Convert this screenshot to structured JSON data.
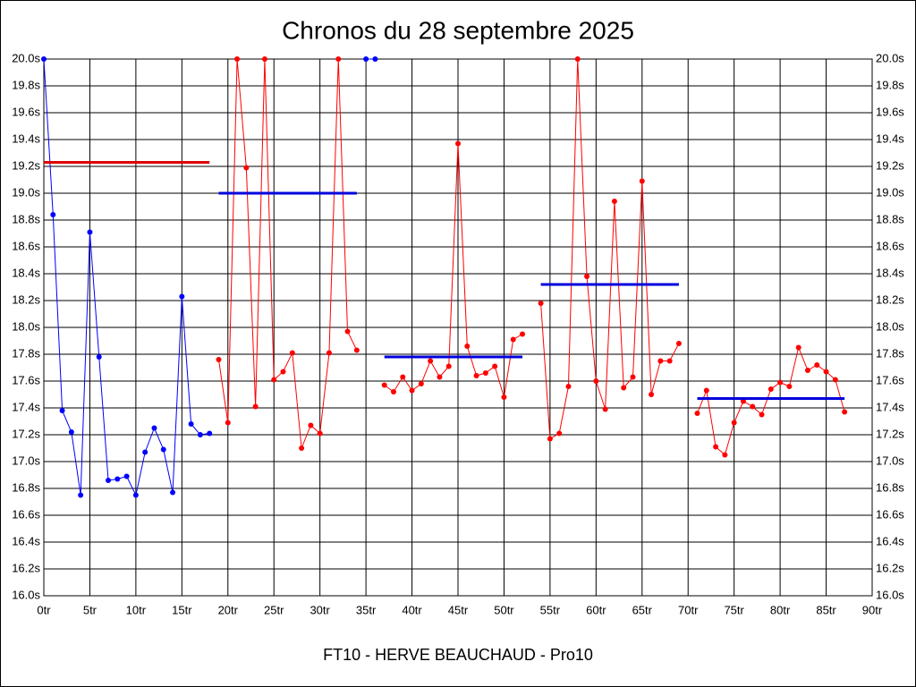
{
  "chart_data": {
    "type": "line",
    "title": "Chronos du 28 septembre 2025",
    "xlabel": "FT10 - HERVE BEAUCHAUD - Pro10",
    "xlim": [
      0,
      90
    ],
    "ylim": [
      16,
      20
    ],
    "grid": true,
    "right_axis": true,
    "xticks": [
      {
        "value": 0,
        "label": "0tr"
      },
      {
        "value": 5,
        "label": "5tr"
      },
      {
        "value": 10,
        "label": "10tr"
      },
      {
        "value": 15,
        "label": "15tr"
      },
      {
        "value": 20,
        "label": "20tr"
      },
      {
        "value": 25,
        "label": "25tr"
      },
      {
        "value": 30,
        "label": "30tr"
      },
      {
        "value": 35,
        "label": "35tr"
      },
      {
        "value": 40,
        "label": "40tr"
      },
      {
        "value": 45,
        "label": "45tr"
      },
      {
        "value": 50,
        "label": "50tr"
      },
      {
        "value": 55,
        "label": "55tr"
      },
      {
        "value": 60,
        "label": "60tr"
      },
      {
        "value": 65,
        "label": "65tr"
      },
      {
        "value": 70,
        "label": "70tr"
      },
      {
        "value": 75,
        "label": "75tr"
      },
      {
        "value": 80,
        "label": "80tr"
      },
      {
        "value": 85,
        "label": "85tr"
      },
      {
        "value": 90,
        "label": "90tr"
      }
    ],
    "yticks": [
      {
        "value": 16.0,
        "label": "16.0s"
      },
      {
        "value": 16.2,
        "label": "16.2s"
      },
      {
        "value": 16.4,
        "label": "16.4s"
      },
      {
        "value": 16.6,
        "label": "16.6s"
      },
      {
        "value": 16.8,
        "label": "16.8s"
      },
      {
        "value": 17.0,
        "label": "17.0s"
      },
      {
        "value": 17.2,
        "label": "17.2s"
      },
      {
        "value": 17.4,
        "label": "17.4s"
      },
      {
        "value": 17.6,
        "label": "17.6s"
      },
      {
        "value": 17.8,
        "label": "17.8s"
      },
      {
        "value": 18.0,
        "label": "18.0s"
      },
      {
        "value": 18.2,
        "label": "18.2s"
      },
      {
        "value": 18.4,
        "label": "18.4s"
      },
      {
        "value": 18.6,
        "label": "18.6s"
      },
      {
        "value": 18.8,
        "label": "18.8s"
      },
      {
        "value": 19.0,
        "label": "19.0s"
      },
      {
        "value": 19.2,
        "label": "19.2s"
      },
      {
        "value": 19.4,
        "label": "19.4s"
      },
      {
        "value": 19.6,
        "label": "19.6s"
      },
      {
        "value": 19.8,
        "label": "19.8s"
      },
      {
        "value": 20.0,
        "label": "20.0s"
      }
    ],
    "series": [
      {
        "color": "#0000ff",
        "x": [
          0,
          1,
          2,
          3,
          4,
          5,
          6,
          7,
          8,
          9,
          10,
          11,
          12,
          13,
          14,
          15,
          16,
          17,
          18
        ],
        "values": [
          20.0,
          18.84,
          17.38,
          17.22,
          16.75,
          18.71,
          17.78,
          16.86,
          16.87,
          16.89,
          16.75,
          17.07,
          17.25,
          17.09,
          16.77,
          18.23,
          17.28,
          17.2,
          17.21
        ]
      },
      {
        "color": "#ff0000",
        "x": [
          19,
          20,
          21,
          22,
          23,
          24,
          25,
          26,
          27,
          28,
          29,
          30,
          31,
          32,
          33,
          34
        ],
        "values": [
          17.76,
          17.29,
          20.0,
          19.19,
          17.41,
          20.0,
          17.61,
          17.67,
          17.81,
          17.1,
          17.27,
          17.21,
          17.81,
          20.0,
          17.97,
          17.83
        ]
      },
      {
        "color": "#0000ff",
        "x": [
          35,
          36
        ],
        "values": [
          20.0,
          20.0
        ]
      },
      {
        "color": "#ff0000",
        "x": [
          37,
          38,
          39,
          40,
          41,
          42,
          43,
          44,
          45,
          46,
          47,
          48,
          49,
          50,
          51,
          52
        ],
        "values": [
          17.57,
          17.52,
          17.63,
          17.53,
          17.58,
          17.75,
          17.63,
          17.71,
          19.37,
          17.86,
          17.64,
          17.66,
          17.71,
          17.48,
          17.91,
          17.95
        ]
      },
      {
        "color": "#ff0000",
        "x": [
          54,
          55,
          56,
          57,
          58,
          59,
          60,
          61,
          62,
          63,
          64,
          65,
          66,
          67,
          68,
          69
        ],
        "values": [
          18.18,
          17.17,
          17.21,
          17.56,
          20.0,
          18.38,
          17.6,
          17.39,
          18.94,
          17.55,
          17.63,
          19.09,
          17.5,
          17.75,
          17.75,
          17.88
        ]
      },
      {
        "color": "#ff0000",
        "x": [
          71,
          72,
          73,
          74,
          75,
          76,
          77,
          78,
          79,
          80,
          81,
          82,
          83,
          84,
          85,
          86,
          87
        ],
        "values": [
          17.36,
          17.53,
          17.11,
          17.05,
          17.29,
          17.45,
          17.41,
          17.35,
          17.54,
          17.59,
          17.56,
          17.85,
          17.68,
          17.72,
          17.67,
          17.61,
          17.37
        ]
      }
    ],
    "averages": [
      {
        "color": "#dd0000",
        "x": [
          0,
          18
        ],
        "value": 19.23
      },
      {
        "color": "#0000dd",
        "x": [
          19,
          34
        ],
        "value": 19.0
      },
      {
        "color": "#0000dd",
        "x": [
          37,
          52
        ],
        "value": 17.78
      },
      {
        "color": "#0000dd",
        "x": [
          54,
          69
        ],
        "value": 18.32
      },
      {
        "color": "#0000dd",
        "x": [
          71,
          87
        ],
        "value": 17.47
      }
    ]
  }
}
